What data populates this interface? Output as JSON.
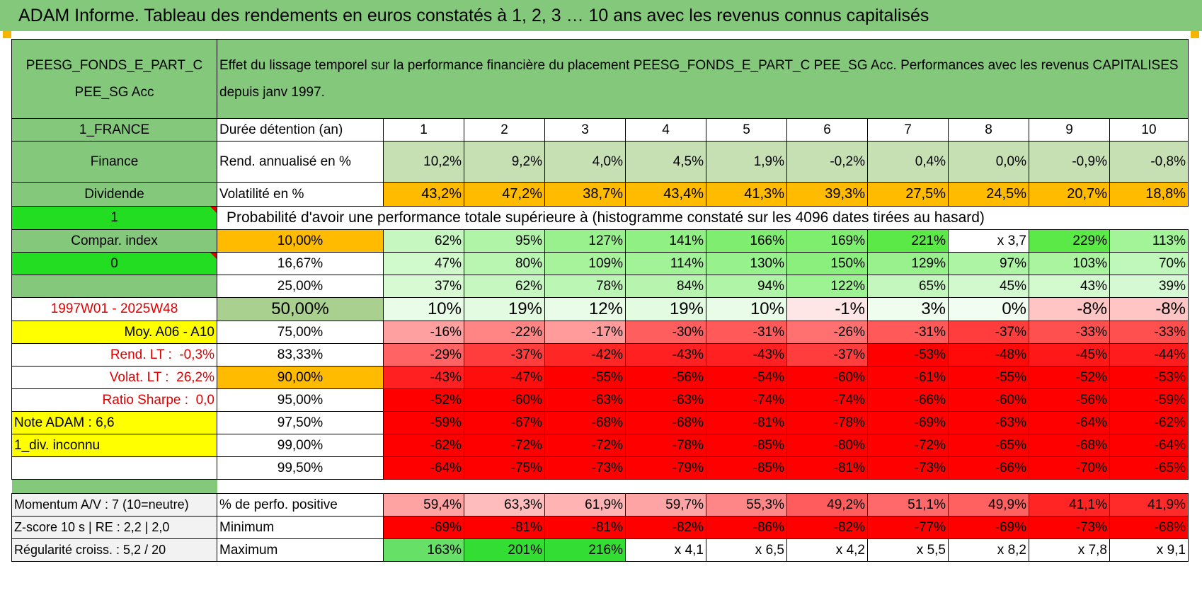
{
  "title": "ADAM Informe. Tableau des rendements en euros constatés à 1, 2, 3 … 10 ans avec les revenus connus capitalisés",
  "fund": {
    "name_line1": "PEESG_FONDS_E_PART_C",
    "name_line2": "PEE_SG Acc",
    "description": "Effet du lissage temporel sur la performance financière du placement PEESG_FONDS_E_PART_C PEE_SG Acc. Performances avec les revenus CAPITALISES depuis janv 1997."
  },
  "sidebar": {
    "country": "1_FRANCE",
    "sector": "Finance",
    "type": "Dividende",
    "flag1": "1",
    "compar_index": "Compar. index",
    "flag2": "0",
    "period": "1997W01 - 2025W48",
    "moy": "Moy. A06 - A10",
    "rend_lt_label": "Rend. LT :",
    "rend_lt_value": "-0,3%",
    "volat_lt_label": "Volat. LT :",
    "volat_lt_value": "26,2%",
    "sharpe_label": "Ratio Sharpe :",
    "sharpe_value": "0,0",
    "note": "Note ADAM : 6,6",
    "div": "1_div. inconnu"
  },
  "header_row": {
    "label": "Durée détention (an)",
    "years": [
      "1",
      "2",
      "3",
      "4",
      "5",
      "6",
      "7",
      "8",
      "9",
      "10"
    ]
  },
  "rend_row": {
    "label": "Rend. annualisé en %",
    "values": [
      "10,2%",
      "9,2%",
      "4,0%",
      "4,5%",
      "1,9%",
      "-0,2%",
      "0,4%",
      "0,0%",
      "-0,9%",
      "-0,8%"
    ]
  },
  "vol_row": {
    "label": "Volatilité en %",
    "values": [
      "43,2%",
      "47,2%",
      "38,7%",
      "43,4%",
      "41,3%",
      "39,3%",
      "27,5%",
      "24,5%",
      "20,7%",
      "18,8%"
    ]
  },
  "prob_title": "Probabilité d'avoir une performance totale supérieure à (histogramme constaté sur les 4096 dates tirées au hasard)",
  "prob_rows": [
    {
      "pct": "10,00%",
      "values": [
        "62%",
        "95%",
        "127%",
        "141%",
        "166%",
        "169%",
        "221%",
        "x 3,7",
        "229%",
        "113%"
      ]
    },
    {
      "pct": "16,67%",
      "values": [
        "47%",
        "80%",
        "109%",
        "114%",
        "130%",
        "150%",
        "129%",
        "97%",
        "103%",
        "70%"
      ]
    },
    {
      "pct": "25,00%",
      "values": [
        "37%",
        "62%",
        "78%",
        "84%",
        "94%",
        "122%",
        "65%",
        "45%",
        "43%",
        "39%"
      ]
    },
    {
      "pct": "50,00%",
      "values": [
        "10%",
        "19%",
        "12%",
        "19%",
        "10%",
        "-1%",
        "3%",
        "0%",
        "-8%",
        "-8%"
      ]
    },
    {
      "pct": "75,00%",
      "values": [
        "-16%",
        "-22%",
        "-17%",
        "-30%",
        "-31%",
        "-26%",
        "-31%",
        "-37%",
        "-33%",
        "-33%"
      ]
    },
    {
      "pct": "83,33%",
      "values": [
        "-29%",
        "-37%",
        "-42%",
        "-43%",
        "-43%",
        "-37%",
        "-53%",
        "-48%",
        "-45%",
        "-44%"
      ]
    },
    {
      "pct": "90,00%",
      "values": [
        "-43%",
        "-47%",
        "-55%",
        "-56%",
        "-54%",
        "-60%",
        "-61%",
        "-55%",
        "-52%",
        "-53%"
      ]
    },
    {
      "pct": "95,00%",
      "values": [
        "-52%",
        "-60%",
        "-63%",
        "-63%",
        "-74%",
        "-74%",
        "-66%",
        "-60%",
        "-56%",
        "-59%"
      ]
    },
    {
      "pct": "97,50%",
      "values": [
        "-59%",
        "-67%",
        "-68%",
        "-68%",
        "-81%",
        "-78%",
        "-69%",
        "-63%",
        "-64%",
        "-62%"
      ]
    },
    {
      "pct": "99,00%",
      "values": [
        "-62%",
        "-72%",
        "-72%",
        "-78%",
        "-85%",
        "-80%",
        "-72%",
        "-65%",
        "-68%",
        "-64%"
      ]
    },
    {
      "pct": "99,50%",
      "values": [
        "-64%",
        "-75%",
        "-73%",
        "-79%",
        "-85%",
        "-81%",
        "-73%",
        "-66%",
        "-70%",
        "-65%"
      ]
    }
  ],
  "bottom_rows": [
    {
      "left": "Momentum A/V : 7 (10=neutre)",
      "label": "% de perfo. positive",
      "values": [
        "59,4%",
        "63,3%",
        "61,9%",
        "59,7%",
        "55,3%",
        "49,2%",
        "51,1%",
        "49,9%",
        "41,1%",
        "41,9%"
      ]
    },
    {
      "left": "Z-score 10 s | RE : 2,2 | 2,0",
      "label": "Minimum",
      "values": [
        "-69%",
        "-81%",
        "-81%",
        "-82%",
        "-86%",
        "-82%",
        "-77%",
        "-69%",
        "-73%",
        "-68%"
      ]
    },
    {
      "left": "Régularité croiss. : 5,2 / 20",
      "label": "Maximum",
      "values": [
        "163%",
        "201%",
        "216%",
        "x 4,1",
        "x 6,5",
        "x 4,2",
        "x 5,5",
        "x 8,2",
        "x 7,8",
        "x 9,1"
      ]
    }
  ],
  "colors": {
    "header_green": "#84c87c",
    "lime": "#22dd22",
    "yellow": "#ffff00",
    "orange": "#ffbb00",
    "red_text": "#e00000"
  }
}
